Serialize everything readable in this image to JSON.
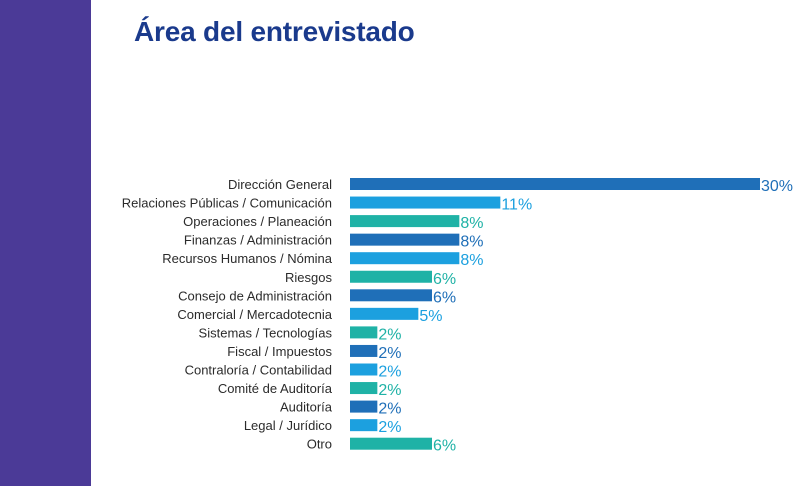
{
  "page": {
    "title": "Área del entrevistado"
  },
  "colors": {
    "side_band": "#4b3a97",
    "title": "#1a3a8c",
    "bar_dark_blue": "#1f6fb8",
    "bar_light_blue": "#1ca0df",
    "bar_teal": "#1fb2a6"
  },
  "chart_data": {
    "type": "bar",
    "orientation": "horizontal",
    "title": "Área del entrevistado",
    "xlabel": "",
    "ylabel": "",
    "xlim": [
      0,
      30
    ],
    "grid": false,
    "legend": "none",
    "categories": [
      "Dirección General",
      "Relaciones Públicas / Comunicación",
      "Operaciones / Planeación",
      "Finanzas / Administración",
      "Recursos Humanos / Nómina",
      "Riesgos",
      "Consejo de Administración",
      "Comercial / Mercadotecnia",
      "Sistemas / Tecnologías",
      "Fiscal / Impuestos",
      "Contraloría / Contabilidad",
      "Comité de Auditoría",
      "Auditoría",
      "Legal / Jurídico",
      "Otro"
    ],
    "values": [
      30,
      11,
      8,
      8,
      8,
      6,
      6,
      5,
      2,
      2,
      2,
      2,
      2,
      2,
      6
    ],
    "value_labels": [
      "30%",
      "11%",
      "8%",
      "8%",
      "8%",
      "6%",
      "6%",
      "5%",
      "2%",
      "2%",
      "2%",
      "2%",
      "2%",
      "2%",
      "6%"
    ],
    "bar_colors": [
      "#1f6fb8",
      "#1ca0df",
      "#1fb2a6",
      "#1f6fb8",
      "#1ca0df",
      "#1fb2a6",
      "#1f6fb8",
      "#1ca0df",
      "#1fb2a6",
      "#1f6fb8",
      "#1ca0df",
      "#1fb2a6",
      "#1f6fb8",
      "#1ca0df",
      "#1fb2a6"
    ]
  }
}
